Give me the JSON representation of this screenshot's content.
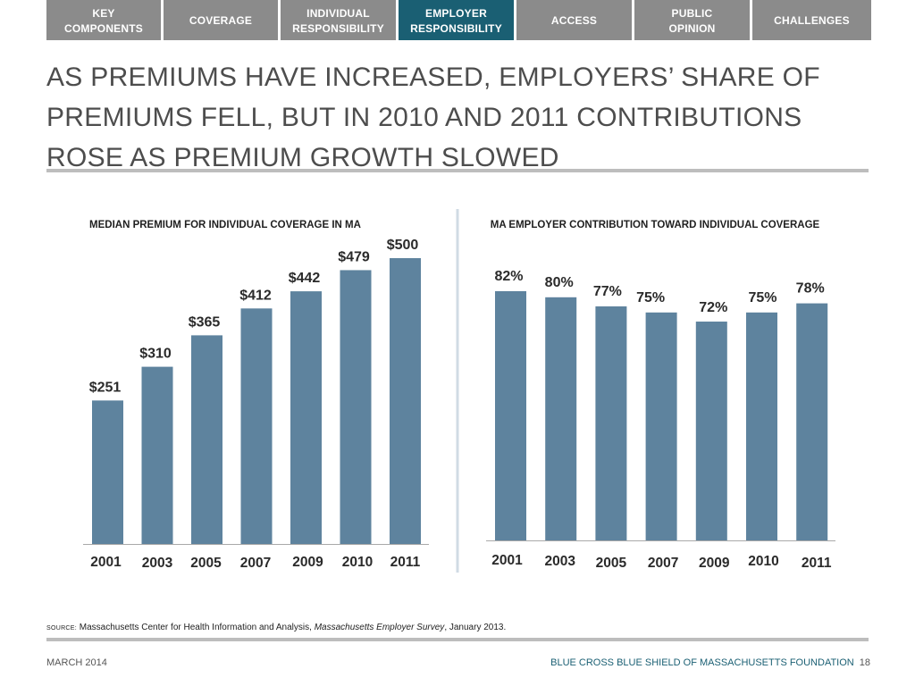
{
  "nav": {
    "tabs": [
      {
        "label": "KEY\nCOMPONENTS",
        "active": false
      },
      {
        "label": "COVERAGE",
        "active": false
      },
      {
        "label": "INDIVIDUAL\nRESPONSIBILITY",
        "active": false
      },
      {
        "label": "EMPLOYER\nRESPONSIBILITY",
        "active": true
      },
      {
        "label": "ACCESS",
        "active": false
      },
      {
        "label": "PUBLIC\nOPINION",
        "active": false
      },
      {
        "label": "CHALLENGES",
        "active": false
      }
    ]
  },
  "title": "AS PREMIUMS HAVE INCREASED, EMPLOYERS’ SHARE OF PREMIUMS FELL, BUT IN 2010 AND 2011 CONTRIBUTIONS ROSE AS PREMIUM GROWTH SLOWED",
  "colors": {
    "bar": "#5e839e",
    "accent": "#1a5f73",
    "tab": "#8b8b8b",
    "rule": "#bdbdbd",
    "divider": "#d0dbe4"
  },
  "chart_data": [
    {
      "type": "bar",
      "title": "MEDIAN PREMIUM FOR INDIVIDUAL COVERAGE IN MA",
      "categories": [
        "2001",
        "2003",
        "2005",
        "2007",
        "2009",
        "2010",
        "2011"
      ],
      "values": [
        251,
        310,
        365,
        412,
        442,
        479,
        500
      ],
      "labels": [
        "$251",
        "$310",
        "$365",
        "$412",
        "$442",
        "$479",
        "$500"
      ],
      "ylim": [
        0,
        500
      ],
      "grid": false
    },
    {
      "type": "bar",
      "title": "MA EMPLOYER CONTRIBUTION TOWARD INDIVIDUAL COVERAGE",
      "categories": [
        "2001",
        "2003",
        "2005",
        "2007",
        "2009",
        "2010",
        "2011"
      ],
      "values": [
        82,
        80,
        77,
        75,
        72,
        75,
        78
      ],
      "labels": [
        "82%",
        "80%",
        "77%",
        "75%",
        "72%",
        "75%",
        "78%"
      ],
      "unit": "%",
      "ylim": [
        0,
        82
      ],
      "grid": false
    }
  ],
  "source": {
    "tag": "SOURCE:",
    "text_before": " Massachusetts Center for Health Information and Analysis, ",
    "italic": "Massachusetts Employer Survey",
    "text_after": ", January 2013."
  },
  "footer": {
    "date": "MARCH 2014",
    "org": "BLUE CROSS BLUE SHIELD OF MASSACHUSETTS FOUNDATION",
    "page": "18"
  }
}
